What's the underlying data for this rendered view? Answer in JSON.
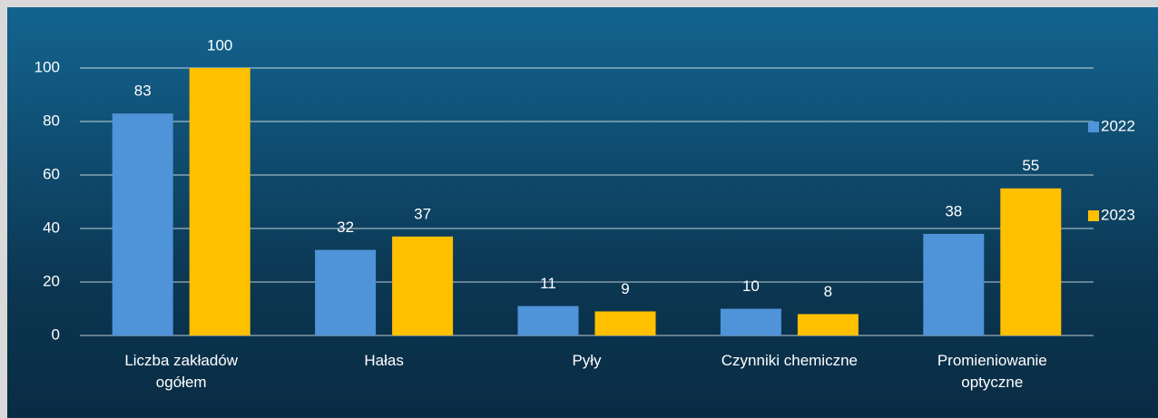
{
  "chart_data": {
    "type": "bar",
    "categories": [
      "Liczba zakładów ogółem",
      "Hałas",
      "Pyły",
      "Czynniki chemiczne",
      "Promieniowanie optyczne"
    ],
    "series": [
      {
        "name": "2022",
        "color": "#4f93d8",
        "values": [
          83,
          32,
          11,
          10,
          38
        ]
      },
      {
        "name": "2023",
        "color": "#ffc000",
        "values": [
          100,
          37,
          9,
          8,
          55
        ]
      }
    ],
    "ylim": [
      0,
      100
    ],
    "yticks": [
      0,
      20,
      40,
      60,
      80,
      100
    ],
    "grid": true,
    "legend": "right"
  }
}
